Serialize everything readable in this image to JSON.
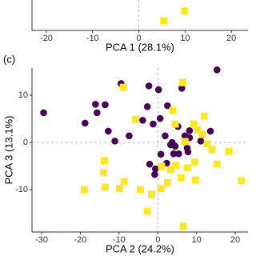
{
  "chart_data": [
    {
      "type": "scatter",
      "xlabel": "PCA 1 (28.1%)",
      "xlim": [
        -23.1,
        23.6
      ],
      "xticks": [
        -20,
        -10,
        0,
        10,
        20
      ],
      "ylim": [
        -20,
        -12
      ],
      "series": [
        {
          "color": "#fde725",
          "marker": "square",
          "x": [
            5.4,
            9.9
          ],
          "values": [
            -17.5,
            -14.9
          ]
        }
      ]
    },
    {
      "type": "scatter",
      "panel": "(c)",
      "xlabel": "PCA 2 (24.2%)",
      "ylabel": "PCA 3 (13.1%)",
      "xlim": [
        -32.5,
        23.3
      ],
      "xticks": [
        -30,
        -20,
        -10,
        0,
        10,
        20
      ],
      "ylim": [
        -19.0,
        15.8
      ],
      "yticks": [
        -10,
        0,
        10
      ],
      "series": [
        {
          "color": "#440154",
          "marker": "circle",
          "x": [
            -29.5,
            -18.8,
            -16.1,
            -13.6,
            -15.7,
            -9.5,
            -2.3,
            -2.7,
            0.2,
            2.5,
            6.2,
            15.3,
            -12.8,
            -11.1,
            -7.4,
            -3.9,
            -1.2,
            0.6,
            1.9,
            4.5,
            8.2,
            5.2,
            5.4,
            7.0,
            3.7,
            4.1,
            -0.8,
            -2.1,
            -0.6,
            2.3,
            0.8,
            13.6,
            11.1,
            7.6,
            8.2,
            7.8,
            3.3
          ],
          "values": [
            6.3,
            4.1,
            8.1,
            8.0,
            6.3,
            12.5,
            12.0,
            7.6,
            11.2,
            7.8,
            11.5,
            15.4,
            2.4,
            0.3,
            1.4,
            4.7,
            3.9,
            5.1,
            1.4,
            -0.8,
            1.0,
            3.4,
            -2.4,
            1.4,
            0.0,
            -2.4,
            -6.8,
            -4.6,
            -5.6,
            -4.4,
            -2.5,
            2.4,
            0.3,
            -1.2,
            2.5,
            -2.0,
            -0.5
          ]
        },
        {
          "color": "#fde725",
          "marker": "square",
          "x": [
            6.4,
            -8.9,
            -5.8,
            3.9,
            4.5,
            9.3,
            12.0,
            10.3,
            11.5,
            7.0,
            12.8,
            14.0,
            18.4,
            15.3,
            1.0,
            3.3,
            4.7,
            7.6,
            9.5,
            9.7,
            6.0,
            2.5,
            0.8,
            -4.5,
            -1.6,
            -2.7,
            6.6,
            -13.8,
            -19.0,
            -13.6,
            -9.9,
            -8.7,
            -14.0,
            21.6
          ],
          "values": [
            12.7,
            11.7,
            4.9,
            6.8,
            3.9,
            3.9,
            5.6,
            2.7,
            1.7,
            0.2,
            -0.3,
            -1.5,
            -1.9,
            -4.6,
            -5.1,
            -5.8,
            -4.9,
            -5.4,
            -4.2,
            -8.0,
            -7.5,
            -8.5,
            -9.8,
            -10.0,
            -11.0,
            -14.6,
            -17.8,
            -3.9,
            -10.0,
            -9.5,
            -9.8,
            -8.3,
            -6.4,
            -8.1
          ]
        }
      ]
    }
  ]
}
